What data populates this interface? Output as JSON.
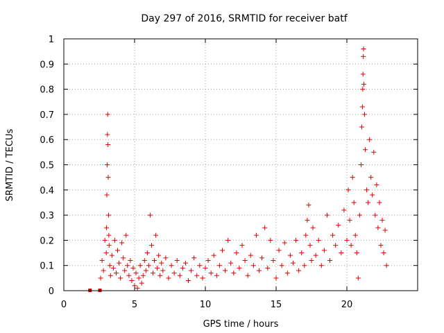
{
  "chart_data": {
    "type": "scatter",
    "title": "Day 297 of 2016, SRMTID for receiver batf",
    "xlabel": "GPS time / hours",
    "ylabel": "SRMTID / TECUs",
    "xlim": [
      0,
      25
    ],
    "ylim": [
      0,
      1
    ],
    "xticks": [
      0,
      5,
      10,
      15,
      20
    ],
    "xtick_labels": [
      "0",
      "5",
      "10",
      "15",
      "20"
    ],
    "yticks": [
      0,
      0.1,
      0.2,
      0.3,
      0.4,
      0.5,
      0.6,
      0.7,
      0.8,
      0.9,
      1
    ],
    "ytick_labels": [
      "0",
      "0.1",
      "0.2",
      "0.3",
      "0.4",
      "0.5",
      "0.6",
      "0.7",
      "0.8",
      "0.9",
      "1"
    ],
    "grid": true,
    "marker": "plus",
    "color": "#e00000",
    "series": [
      {
        "name": "SRMTID",
        "x": [
          1.85,
          2.55,
          2.6,
          2.7,
          2.8,
          2.9,
          3.0,
          3.02,
          3.04,
          3.06,
          3.08,
          3.1,
          3.12,
          3.14,
          3.16,
          3.18,
          3.2,
          3.25,
          3.3,
          3.4,
          3.5,
          3.6,
          3.7,
          3.8,
          3.9,
          4.0,
          4.1,
          4.2,
          4.3,
          4.4,
          4.5,
          4.6,
          4.7,
          4.8,
          4.9,
          5.0,
          5.1,
          5.2,
          5.3,
          5.4,
          5.5,
          5.6,
          5.7,
          5.8,
          5.9,
          6.0,
          6.1,
          6.2,
          6.3,
          6.4,
          6.5,
          6.6,
          6.7,
          6.8,
          6.9,
          7.0,
          7.2,
          7.4,
          7.6,
          7.8,
          8.0,
          8.2,
          8.4,
          8.6,
          8.8,
          9.0,
          9.2,
          9.4,
          9.6,
          9.8,
          10.0,
          10.2,
          10.4,
          10.6,
          10.8,
          11.0,
          11.2,
          11.4,
          11.6,
          11.8,
          12.0,
          12.2,
          12.4,
          12.6,
          12.8,
          13.0,
          13.2,
          13.4,
          13.6,
          13.8,
          14.0,
          14.2,
          14.4,
          14.6,
          14.8,
          15.0,
          15.2,
          15.4,
          15.6,
          15.8,
          16.0,
          16.2,
          16.4,
          16.6,
          16.8,
          17.0,
          17.1,
          17.2,
          17.3,
          17.4,
          17.5,
          17.6,
          17.8,
          18.0,
          18.2,
          18.4,
          18.6,
          18.8,
          19.0,
          19.2,
          19.4,
          19.6,
          19.8,
          20.0,
          20.1,
          20.2,
          20.3,
          20.4,
          20.5,
          20.6,
          20.7,
          20.8,
          20.9,
          21.0,
          21.05,
          21.1,
          21.12,
          21.14,
          21.16,
          21.18,
          21.2,
          21.25,
          21.3,
          21.4,
          21.5,
          21.6,
          21.7,
          21.8,
          21.9,
          22.0,
          22.1,
          22.2,
          22.3,
          22.4,
          22.5,
          22.6,
          22.7,
          22.8
        ],
        "y": [
          0,
          0,
          0.05,
          0.12,
          0.08,
          0.2,
          0.15,
          0.25,
          0.38,
          0.5,
          0.62,
          0.7,
          0.58,
          0.45,
          0.3,
          0.22,
          0.18,
          0.1,
          0.06,
          0.14,
          0.09,
          0.2,
          0.07,
          0.16,
          0.11,
          0.05,
          0.19,
          0.13,
          0.08,
          0.22,
          0.1,
          0.06,
          0.12,
          0.04,
          0.09,
          0.02,
          0.07,
          0.01,
          0.05,
          0.1,
          0.03,
          0.06,
          0.12,
          0.08,
          0.15,
          0.1,
          0.3,
          0.18,
          0.07,
          0.12,
          0.22,
          0.09,
          0.14,
          0.06,
          0.11,
          0.08,
          0.13,
          0.05,
          0.1,
          0.07,
          0.12,
          0.06,
          0.09,
          0.11,
          0.04,
          0.08,
          0.13,
          0.06,
          0.1,
          0.05,
          0.09,
          0.12,
          0.07,
          0.14,
          0.06,
          0.1,
          0.16,
          0.08,
          0.2,
          0.11,
          0.07,
          0.15,
          0.09,
          0.18,
          0.12,
          0.06,
          0.14,
          0.1,
          0.22,
          0.08,
          0.13,
          0.25,
          0.09,
          0.2,
          0.12,
          0.05,
          0.16,
          0.1,
          0.19,
          0.07,
          0.14,
          0.11,
          0.2,
          0.08,
          0.15,
          0.1,
          0.22,
          0.28,
          0.34,
          0.18,
          0.12,
          0.25,
          0.14,
          0.2,
          0.1,
          0.16,
          0.3,
          0.12,
          0.22,
          0.18,
          0.26,
          0.15,
          0.32,
          0.2,
          0.4,
          0.28,
          0.18,
          0.45,
          0.35,
          0.22,
          0.15,
          0.05,
          0.3,
          0.5,
          0.65,
          0.73,
          0.8,
          0.86,
          0.93,
          0.96,
          0.82,
          0.7,
          0.56,
          0.4,
          0.35,
          0.6,
          0.45,
          0.38,
          0.55,
          0.3,
          0.42,
          0.25,
          0.35,
          0.18,
          0.28,
          0.15,
          0.24,
          0.1
        ]
      }
    ]
  }
}
